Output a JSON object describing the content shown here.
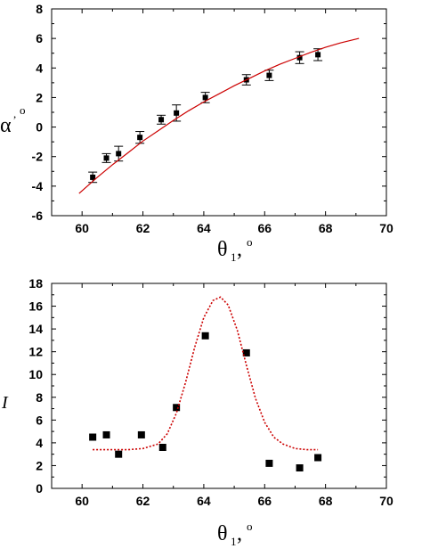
{
  "chart_data": [
    {
      "type": "scatter",
      "title": "",
      "xlabel": "θ1, o",
      "ylabel": "α, o",
      "xlim": [
        59,
        70
      ],
      "ylim": [
        -6,
        8
      ],
      "xticks": [
        "60",
        "62",
        "64",
        "66",
        "68",
        "70"
      ],
      "yticks": [
        "-6",
        "-4",
        "-2",
        "0",
        "2",
        "4",
        "6",
        "8"
      ],
      "grid": false,
      "series": [
        {
          "kind": "points_with_error_bars",
          "color": "#000000",
          "x": [
            60.35,
            60.8,
            61.2,
            61.9,
            62.6,
            63.1,
            64.05,
            65.4,
            66.15,
            67.15,
            67.75
          ],
          "y": [
            -3.4,
            -2.1,
            -1.8,
            -0.7,
            0.5,
            0.95,
            2.0,
            3.2,
            3.5,
            4.7,
            4.9
          ],
          "err": [
            0.35,
            0.3,
            0.5,
            0.4,
            0.3,
            0.55,
            0.35,
            0.35,
            0.35,
            0.4,
            0.4
          ]
        },
        {
          "kind": "line",
          "color": "#cc0000",
          "x": [
            59.9,
            60.5,
            61.0,
            61.5,
            62.0,
            62.5,
            63.0,
            63.5,
            64.0,
            64.5,
            65.0,
            65.5,
            66.0,
            66.5,
            67.0,
            67.5,
            68.0,
            68.5,
            69.1
          ],
          "y": [
            -4.5,
            -3.4,
            -2.55,
            -1.75,
            -0.95,
            -0.25,
            0.45,
            1.1,
            1.7,
            2.25,
            2.8,
            3.3,
            3.8,
            4.25,
            4.65,
            5.05,
            5.4,
            5.7,
            6.0
          ]
        }
      ]
    },
    {
      "type": "scatter",
      "title": "",
      "xlabel": "θ1, o",
      "ylabel": "I",
      "xlim": [
        59,
        70
      ],
      "ylim": [
        0,
        18
      ],
      "xticks": [
        "60",
        "62",
        "64",
        "66",
        "68",
        "70"
      ],
      "yticks": [
        "0",
        "2",
        "4",
        "6",
        "8",
        "10",
        "12",
        "14",
        "16",
        "18"
      ],
      "grid": false,
      "series": [
        {
          "kind": "points",
          "color": "#000000",
          "x": [
            60.35,
            60.8,
            61.2,
            61.95,
            62.65,
            63.1,
            64.05,
            65.4,
            66.15,
            67.15,
            67.75
          ],
          "y": [
            4.5,
            4.7,
            3.0,
            4.7,
            3.6,
            7.1,
            13.4,
            11.9,
            2.2,
            1.8,
            2.7
          ]
        },
        {
          "kind": "dotted_line",
          "color": "#cc0000",
          "x": [
            60.35,
            61.0,
            61.5,
            62.0,
            62.5,
            62.8,
            63.1,
            63.4,
            63.7,
            64.0,
            64.3,
            64.55,
            64.8,
            65.1,
            65.4,
            65.7,
            66.0,
            66.3,
            66.6,
            67.0,
            67.4,
            67.75
          ],
          "y": [
            3.4,
            3.4,
            3.4,
            3.5,
            3.9,
            4.8,
            6.6,
            9.3,
            12.4,
            15.0,
            16.5,
            16.8,
            16.1,
            13.9,
            10.8,
            7.9,
            5.8,
            4.5,
            3.9,
            3.5,
            3.4,
            3.4
          ]
        }
      ]
    }
  ]
}
